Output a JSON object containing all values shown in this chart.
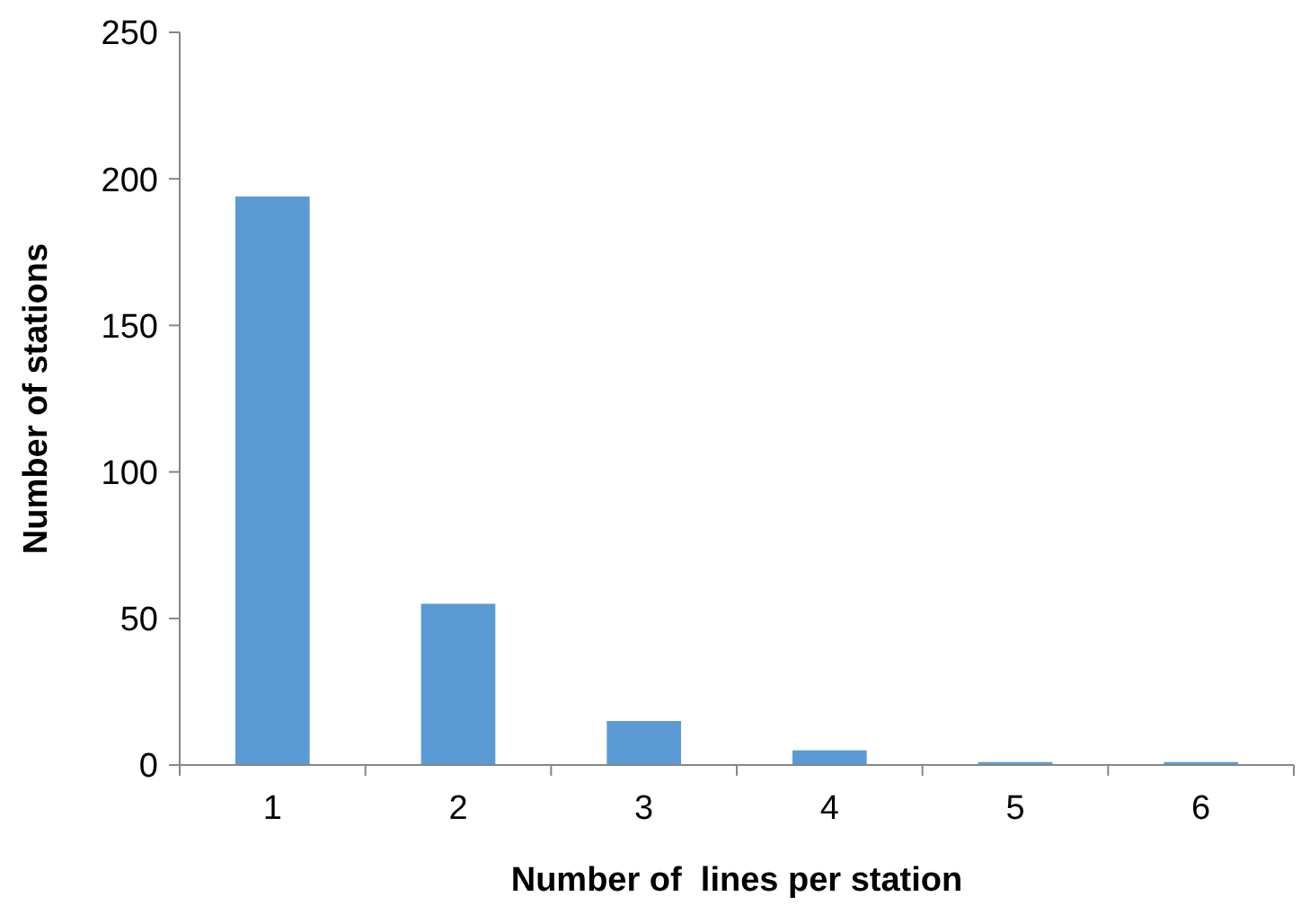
{
  "chart_data": {
    "type": "bar",
    "xlabel": "Number of  lines per station",
    "ylabel": "Number of stations",
    "categories": [
      "1",
      "2",
      "3",
      "4",
      "5",
      "6"
    ],
    "values": [
      194,
      55,
      15,
      5,
      1,
      1
    ],
    "color": "#5b9bd5",
    "ylim": [
      0,
      250
    ],
    "yticks": [
      0,
      50,
      100,
      150,
      200,
      250
    ],
    "grid": false
  }
}
